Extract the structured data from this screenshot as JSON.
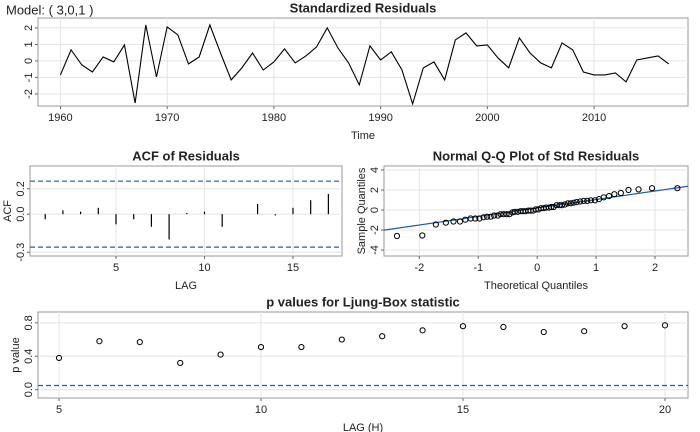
{
  "model_label": "Model: ( 3,0,1 )",
  "chart_data": [
    {
      "type": "line",
      "title": "Standardized Residuals",
      "xlabel": "Time",
      "color": "#000000",
      "x": [
        1960,
        1961,
        1962,
        1963,
        1964,
        1965,
        1966,
        1967,
        1968,
        1969,
        1970,
        1971,
        1972,
        1973,
        1974,
        1975,
        1976,
        1977,
        1978,
        1979,
        1980,
        1981,
        1982,
        1983,
        1984,
        1985,
        1986,
        1987,
        1988,
        1989,
        1990,
        1991,
        1992,
        1993,
        1994,
        1995,
        1996,
        1997,
        1998,
        1999,
        2000,
        2001,
        2002,
        2003,
        2004,
        2005,
        2006,
        2007,
        2008,
        2009,
        2010,
        2011,
        2012,
        2013,
        2014,
        2015,
        2016,
        2017
      ],
      "values": [
        -0.85,
        0.67,
        -0.24,
        -0.67,
        0.24,
        -0.06,
        0.97,
        -2.55,
        2.18,
        -0.97,
        2.06,
        1.58,
        -0.18,
        0.24,
        2.18,
        0.48,
        -1.15,
        -0.42,
        0.48,
        -0.55,
        -0.06,
        0.73,
        -0.12,
        0.3,
        0.85,
        2.0,
        0.79,
        -0.12,
        -1.45,
        0.91,
        0.06,
        0.55,
        -0.55,
        -2.6,
        -0.42,
        -0.06,
        -1.15,
        1.27,
        1.7,
        0.91,
        0.97,
        0.18,
        -0.42,
        1.39,
        0.48,
        -0.12,
        -0.42,
        1.09,
        0.67,
        -0.67,
        -0.85,
        -0.85,
        -0.73,
        -1.27,
        0.06,
        0.18,
        0.3,
        -0.18
      ],
      "xlim": [
        1957.9,
        2018.8
      ],
      "xticks": [
        1960,
        1970,
        1980,
        1990,
        2000,
        2010
      ],
      "ylim": [
        -2.73,
        2.6
      ],
      "yticks": [
        -2,
        -1,
        0,
        1,
        2
      ],
      "grid": true
    },
    {
      "type": "bar",
      "title": "ACF of Residuals",
      "xlabel": "LAG",
      "ylabel": "ACF",
      "color": "#000000",
      "x": [
        1,
        2,
        3,
        4,
        5,
        6,
        7,
        8,
        9,
        10,
        11,
        12,
        13,
        14,
        15,
        16,
        17
      ],
      "values": [
        -0.04,
        0.03,
        0.02,
        0.05,
        -0.08,
        -0.04,
        -0.1,
        -0.2,
        0.01,
        0.02,
        -0.1,
        0.0,
        0.08,
        -0.01,
        0.05,
        0.11,
        0.16
      ],
      "hlines": [
        0.26,
        -0.26
      ],
      "hline_color": "#1f5fa8",
      "xlim": [
        0.14,
        17.77
      ],
      "xticks": [
        5,
        10,
        15
      ],
      "ylim": [
        -0.33,
        0.38
      ],
      "yticks": [
        -0.3,
        {
          "value": 0,
          "label": "0.0"
        },
        0.2
      ],
      "grid": true
    },
    {
      "type": "scatter",
      "title": "Normal Q-Q Plot of Std Residuals",
      "xlabel": "Theoretical Quantiles",
      "ylabel": "Sample Quantiles",
      "color": "#000000",
      "x": [
        -2.38,
        -1.95,
        -1.72,
        -1.55,
        -1.42,
        -1.31,
        -1.22,
        -1.13,
        -1.05,
        -0.98,
        -0.91,
        -0.85,
        -0.79,
        -0.73,
        -0.67,
        -0.62,
        -0.57,
        -0.52,
        -0.47,
        -0.42,
        -0.38,
        -0.33,
        -0.28,
        -0.24,
        -0.2,
        -0.15,
        -0.11,
        -0.065,
        -0.022,
        0.022,
        0.065,
        0.11,
        0.15,
        0.2,
        0.24,
        0.28,
        0.33,
        0.38,
        0.42,
        0.47,
        0.52,
        0.57,
        0.62,
        0.67,
        0.73,
        0.79,
        0.85,
        0.91,
        0.98,
        1.05,
        1.13,
        1.22,
        1.31,
        1.42,
        1.55,
        1.72,
        1.95,
        2.38
      ],
      "values": [
        -2.6,
        -2.55,
        -1.45,
        -1.27,
        -1.15,
        -1.15,
        -0.97,
        -0.85,
        -0.85,
        -0.85,
        -0.73,
        -0.67,
        -0.67,
        -0.55,
        -0.55,
        -0.42,
        -0.42,
        -0.42,
        -0.42,
        -0.24,
        -0.18,
        -0.18,
        -0.12,
        -0.12,
        -0.12,
        -0.06,
        -0.06,
        -0.06,
        0.06,
        0.06,
        0.18,
        0.18,
        0.24,
        0.24,
        0.3,
        0.3,
        0.48,
        0.48,
        0.48,
        0.55,
        0.67,
        0.67,
        0.73,
        0.79,
        0.85,
        0.91,
        0.91,
        0.97,
        0.97,
        1.09,
        1.27,
        1.39,
        1.58,
        1.7,
        2.0,
        2.06,
        2.18,
        2.18
      ],
      "qq_line": {
        "intercept": 0.2,
        "slope": 0.85,
        "color": "#1f5fa8"
      },
      "xlim": [
        -2.6,
        2.56
      ],
      "xticks": [
        -2,
        -1,
        0,
        1,
        2
      ],
      "ylim": [
        -4.6,
        4.4
      ],
      "yticks": [
        -4,
        -2,
        0,
        2,
        4
      ],
      "grid": true
    },
    {
      "type": "scatter",
      "title": "p values for Ljung-Box statistic",
      "xlabel": "LAG (H)",
      "ylabel": "p value",
      "color": "#000000",
      "x": [
        5,
        6,
        7,
        8,
        9,
        10,
        11,
        12,
        13,
        14,
        15,
        16,
        17,
        18,
        19,
        20
      ],
      "values": [
        0.38,
        0.58,
        0.57,
        0.32,
        0.42,
        0.51,
        0.51,
        0.6,
        0.64,
        0.71,
        0.76,
        0.75,
        0.69,
        0.7,
        0.76,
        0.77
      ],
      "hlines": [
        0.05
      ],
      "hline_color": "#1f5fa8",
      "xlim": [
        4.48,
        20.57
      ],
      "xticks": [
        5,
        10,
        15,
        20
      ],
      "ylim": [
        -0.1,
        0.93
      ],
      "yticks": [
        {
          "value": 0,
          "label": "0.0"
        },
        0.4,
        0.8
      ],
      "grid": true
    }
  ]
}
